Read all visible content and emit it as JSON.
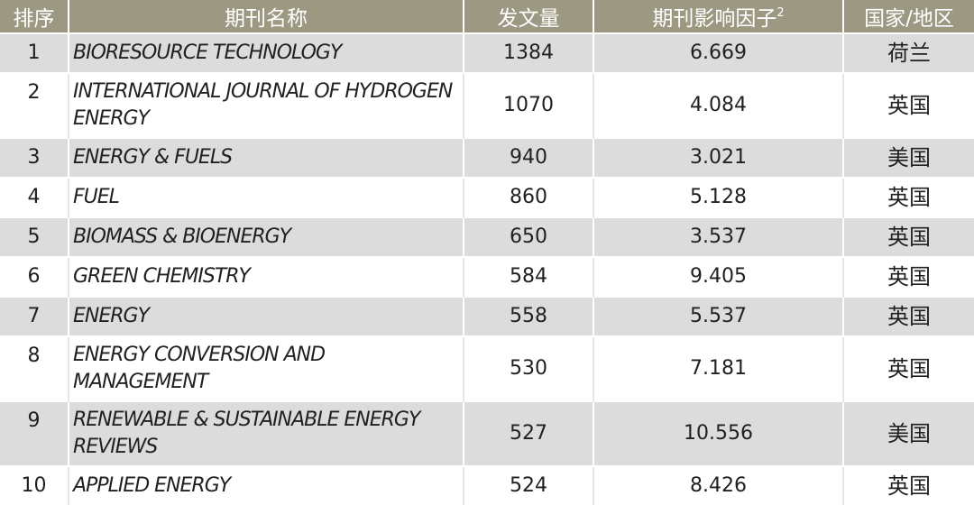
{
  "header": {
    "rank": "排序",
    "journal": "期刊名称",
    "papers": "发文量",
    "impact": "期刊影响因子",
    "impact_sup": "2",
    "country": "国家/地区"
  },
  "rows": [
    {
      "rank": "1",
      "journal": "BIORESOURCE TECHNOLOGY",
      "papers": "1384",
      "impact": "6.669",
      "country": "荷兰"
    },
    {
      "rank": "2",
      "journal": "INTERNATIONAL JOURNAL OF HYDROGEN ENERGY",
      "papers": "1070",
      "impact": "4.084",
      "country": "英国"
    },
    {
      "rank": "3",
      "journal": "ENERGY & FUELS",
      "papers": "940",
      "impact": "3.021",
      "country": "美国"
    },
    {
      "rank": "4",
      "journal": "FUEL",
      "papers": "860",
      "impact": "5.128",
      "country": "英国"
    },
    {
      "rank": "5",
      "journal": "BIOMASS & BIOENERGY",
      "papers": "650",
      "impact": "3.537",
      "country": "英国"
    },
    {
      "rank": "6",
      "journal": "GREEN CHEMISTRY",
      "papers": "584",
      "impact": "9.405",
      "country": "英国"
    },
    {
      "rank": "7",
      "journal": "ENERGY",
      "papers": "558",
      "impact": "5.537",
      "country": "英国"
    },
    {
      "rank": "8",
      "journal": "ENERGY CONVERSION AND MANAGEMENT",
      "papers": "530",
      "impact": "7.181",
      "country": "英国"
    },
    {
      "rank": "9",
      "journal": "RENEWABLE & SUSTAINABLE ENERGY REVIEWS",
      "papers": "527",
      "impact": "10.556",
      "country": "美国"
    },
    {
      "rank": "10",
      "journal": "APPLIED ENERGY",
      "papers": "524",
      "impact": "8.426",
      "country": "英国"
    }
  ]
}
